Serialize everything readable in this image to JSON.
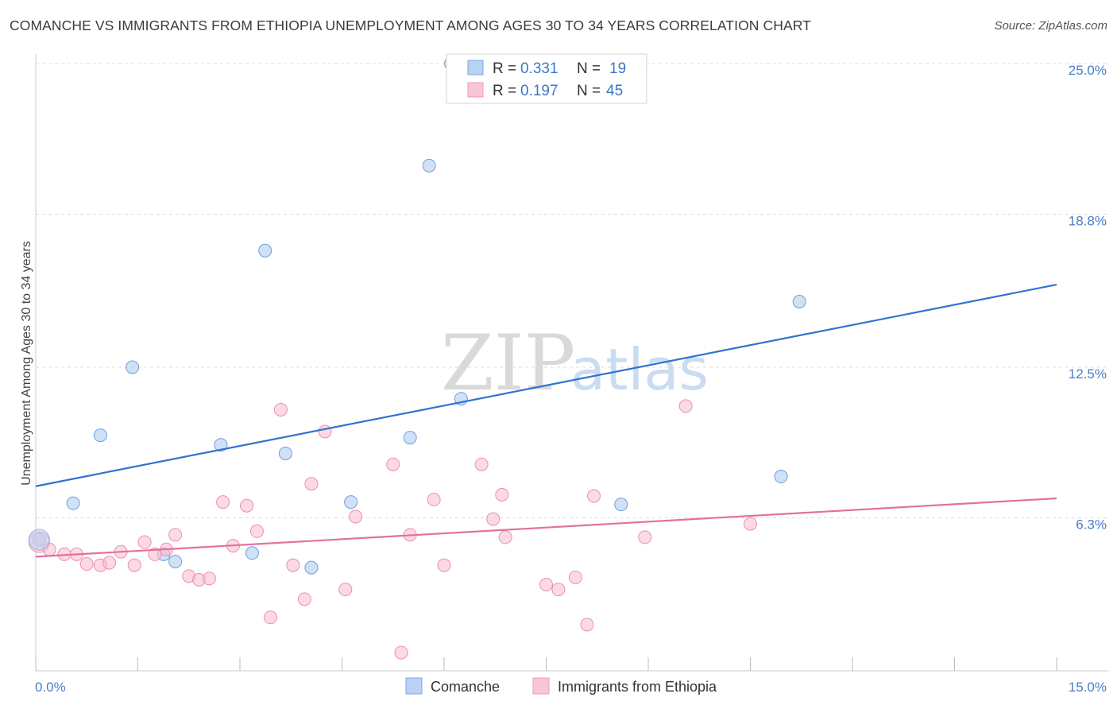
{
  "title": "COMANCHE VS IMMIGRANTS FROM ETHIOPIA UNEMPLOYMENT AMONG AGES 30 TO 34 YEARS CORRELATION CHART",
  "source": "Source: ZipAtlas.com",
  "watermark": {
    "zip": "ZIP",
    "atlas": "atlas"
  },
  "chart_data": {
    "type": "scatter",
    "xlabel": "",
    "ylabel": "Unemployment Among Ages 30 to 34 years",
    "xlim": [
      0,
      15
    ],
    "ylim": [
      0,
      25
    ],
    "y_ticks": [
      {
        "value": 6.3,
        "label": "6.3%"
      },
      {
        "value": 12.5,
        "label": "12.5%"
      },
      {
        "value": 18.8,
        "label": "18.8%"
      },
      {
        "value": 25.0,
        "label": "25.0%"
      }
    ],
    "x_tick_labels": {
      "min": "0.0%",
      "max": "15.0%"
    },
    "grid": true,
    "legend": {
      "placement": "top-center",
      "entries": [
        {
          "r_label": "R =",
          "r": "0.331",
          "n_label": "N =",
          "n": "19"
        },
        {
          "r_label": "R =",
          "r": "0.197",
          "n_label": "N =",
          "n": "45"
        }
      ]
    },
    "series": [
      {
        "name": "Comanche",
        "color": "#a9c8ef",
        "stroke": "#6f9fdc",
        "line_color": "#2f73d1",
        "trend": [
          [
            0,
            7.6
          ],
          [
            15,
            15.9
          ]
        ],
        "points": [
          [
            0.05,
            5.4
          ],
          [
            0.55,
            6.9
          ],
          [
            0.95,
            9.7
          ],
          [
            1.42,
            12.5
          ],
          [
            1.88,
            4.8
          ],
          [
            2.05,
            4.5
          ],
          [
            2.72,
            9.3
          ],
          [
            3.18,
            4.85
          ],
          [
            3.37,
            17.3
          ],
          [
            3.67,
            8.95
          ],
          [
            4.05,
            4.25
          ],
          [
            4.63,
            6.95
          ],
          [
            5.5,
            9.6
          ],
          [
            5.78,
            20.8
          ],
          [
            6.25,
            11.2
          ],
          [
            8.6,
            6.85
          ],
          [
            10.95,
            8.0
          ],
          [
            11.22,
            15.2
          ],
          [
            6.1,
            25.0
          ]
        ]
      },
      {
        "name": "Immigrants from Ethiopia",
        "color": "#f7bcd0",
        "stroke": "#eb8fae",
        "line_color": "#e4709b",
        "trend": [
          [
            0,
            4.7
          ],
          [
            15,
            7.1
          ]
        ],
        "points": [
          [
            0.05,
            5.3
          ],
          [
            0.2,
            5.0
          ],
          [
            0.42,
            4.8
          ],
          [
            0.6,
            4.8
          ],
          [
            0.75,
            4.4
          ],
          [
            0.95,
            4.35
          ],
          [
            1.08,
            4.45
          ],
          [
            1.25,
            4.9
          ],
          [
            1.45,
            4.35
          ],
          [
            1.6,
            5.3
          ],
          [
            1.75,
            4.8
          ],
          [
            1.92,
            5.0
          ],
          [
            2.05,
            5.6
          ],
          [
            2.25,
            3.9
          ],
          [
            2.4,
            3.75
          ],
          [
            2.55,
            3.8
          ],
          [
            2.75,
            6.95
          ],
          [
            2.9,
            5.15
          ],
          [
            3.1,
            6.8
          ],
          [
            3.25,
            5.75
          ],
          [
            3.45,
            2.2
          ],
          [
            3.6,
            10.75
          ],
          [
            3.78,
            4.35
          ],
          [
            3.95,
            2.95
          ],
          [
            4.05,
            7.7
          ],
          [
            4.25,
            9.85
          ],
          [
            4.55,
            3.35
          ],
          [
            4.7,
            6.35
          ],
          [
            5.25,
            8.5
          ],
          [
            5.37,
            0.75
          ],
          [
            5.5,
            5.6
          ],
          [
            5.85,
            7.05
          ],
          [
            6.0,
            4.35
          ],
          [
            6.55,
            8.5
          ],
          [
            6.72,
            6.25
          ],
          [
            6.85,
            7.25
          ],
          [
            6.9,
            5.5
          ],
          [
            7.5,
            3.55
          ],
          [
            7.68,
            3.35
          ],
          [
            7.93,
            3.85
          ],
          [
            8.1,
            1.9
          ],
          [
            8.2,
            7.2
          ],
          [
            8.95,
            5.5
          ],
          [
            9.55,
            10.9
          ],
          [
            10.5,
            6.05
          ]
        ]
      }
    ]
  }
}
